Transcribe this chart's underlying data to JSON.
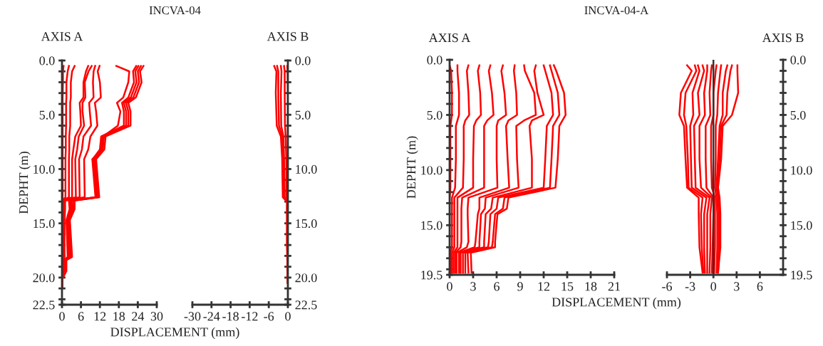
{
  "chart_data": [
    {
      "type": "line",
      "title": "INCVA-04",
      "subtitle": "AXIS A",
      "xlabel": "DISPLACEMENT (mm)",
      "ylabel": "DEPHT (m)",
      "xlim": [
        0,
        30
      ],
      "xticks": [
        0,
        6,
        12,
        18,
        24,
        30
      ],
      "ylim": [
        22.5,
        0
      ],
      "yticks": [
        {
          "value": 0,
          "label": "0.0"
        },
        {
          "value": 1,
          "label": null
        },
        {
          "value": 2,
          "label": null
        },
        {
          "value": 3,
          "label": null
        },
        {
          "value": 4,
          "label": null
        },
        {
          "value": 5,
          "label": "5.0"
        },
        {
          "value": 6,
          "label": null
        },
        {
          "value": 7,
          "label": null
        },
        {
          "value": 8,
          "label": null
        },
        {
          "value": 9,
          "label": null
        },
        {
          "value": 10,
          "label": "10.0"
        },
        {
          "value": 11,
          "label": null
        },
        {
          "value": 12,
          "label": null
        },
        {
          "value": 13,
          "label": null
        },
        {
          "value": 14,
          "label": null
        },
        {
          "value": 15,
          "label": "15.0"
        },
        {
          "value": 16,
          "label": null
        },
        {
          "value": 17,
          "label": null
        },
        {
          "value": 18,
          "label": null
        },
        {
          "value": 19,
          "label": null
        },
        {
          "value": 20,
          "label": "20.0"
        },
        {
          "value": 21,
          "label": null
        },
        {
          "value": 22,
          "label": null
        },
        {
          "value": 22.5,
          "label": "22.5"
        }
      ],
      "series": [
        {
          "color": "#ff0000",
          "x": [
            25.8,
            24.7,
            25.2,
            23.4,
            21,
            21.7,
            21.7,
            13.8,
            13.4,
            10.8,
            11.8,
            4,
            4,
            2.5,
            3.2,
            1.4,
            1.4,
            0,
            0
          ],
          "values": [
            0.5,
            1,
            2,
            3.4,
            3.9,
            4.7,
            6,
            7,
            8.2,
            9.1,
            12.6,
            12.9,
            13.7,
            14.7,
            18.1,
            18.4,
            19.4,
            20.2,
            20.9
          ]
        },
        {
          "color": "#ff0000",
          "x": [
            25,
            24,
            24.4,
            22.6,
            20.3,
            21,
            21,
            13.3,
            12.9,
            10.4,
            11.5,
            3.5,
            3.6,
            2.2,
            2.8,
            1.1,
            1.1,
            0,
            0
          ],
          "values": [
            0.5,
            1,
            2,
            3.4,
            3.9,
            4.7,
            6,
            7,
            8.2,
            9.1,
            12.6,
            12.9,
            13.7,
            14.7,
            18.1,
            18.4,
            19.4,
            20.2,
            20.9
          ]
        },
        {
          "color": "#ff0000",
          "x": [
            24.2,
            23.2,
            23.6,
            21.8,
            19.6,
            20.3,
            20.3,
            12.8,
            12.4,
            10,
            11.2,
            3,
            3.2,
            1.9,
            2.4,
            0.8,
            0.9,
            0,
            0
          ],
          "values": [
            0.5,
            1,
            2,
            3.4,
            3.9,
            4.7,
            6,
            7,
            8.2,
            9.1,
            12.6,
            12.9,
            13.7,
            14.7,
            18.1,
            18.4,
            19.4,
            20.2,
            20.9
          ]
        },
        {
          "color": "#ff0000",
          "x": [
            23.5,
            22.5,
            22.8,
            21,
            19,
            19.6,
            19.6,
            12.4,
            12,
            9.7,
            10.9,
            2.6,
            2.8,
            1.6,
            2,
            0.6,
            0.7,
            0,
            0
          ],
          "values": [
            0.5,
            1,
            2,
            3.4,
            3.9,
            4.7,
            6,
            7,
            8.2,
            9.1,
            12.6,
            12.9,
            13.7,
            14.7,
            18.1,
            18.4,
            19.4,
            20.2,
            20.9
          ]
        },
        {
          "color": "#ff0000",
          "x": [
            17.2,
            21.3,
            21,
            19.4,
            17.4,
            18.5,
            17.7,
            13,
            12.6,
            9.6,
            10.6,
            2.2,
            2.4,
            1.4,
            1.8,
            0.5,
            0.6,
            0,
            0
          ],
          "values": [
            0.5,
            1,
            2,
            3.4,
            3.9,
            4.7,
            6,
            7,
            8.2,
            9.1,
            12.6,
            12.9,
            13.7,
            14.7,
            18.1,
            18.4,
            19.4,
            20.2,
            20.9
          ]
        },
        {
          "color": "#ff0000",
          "x": [
            11.9,
            11.3,
            12,
            12.3,
            10.4,
            10.8,
            11.2,
            9,
            8.3,
            7,
            7.2,
            1,
            1,
            0.8,
            0.8,
            0.5,
            0.5,
            0,
            0
          ],
          "values": [
            0.5,
            1,
            2,
            3.4,
            3.9,
            4.7,
            6,
            7,
            8.2,
            9.1,
            12.6,
            12.9,
            13.7,
            14.7,
            18.1,
            18.4,
            19.4,
            20.2,
            20.9
          ]
        },
        {
          "color": "#ff0000",
          "x": [
            10.5,
            10,
            9.8,
            10,
            8.6,
            8.8,
            9.2,
            6.8,
            6.3,
            5.4,
            5.6,
            0.8,
            0.8,
            0.6,
            0.6,
            0.4,
            0.4,
            0,
            0
          ],
          "values": [
            0.5,
            1,
            2,
            3.4,
            3.9,
            4.7,
            6,
            7,
            8.2,
            9.1,
            12.6,
            12.9,
            13.7,
            14.7,
            18.1,
            18.4,
            19.4,
            20.2,
            20.9
          ]
        },
        {
          "color": "#ff0000",
          "x": [
            9.4,
            8.4,
            7.2,
            7.4,
            6.5,
            6.5,
            7,
            5.3,
            4.8,
            4.2,
            4.4,
            0.6,
            0.6,
            0.5,
            0.5,
            0.3,
            0.3,
            0,
            0
          ],
          "values": [
            0.5,
            1,
            2,
            3.4,
            3.9,
            4.7,
            6,
            7,
            8.2,
            9.1,
            12.6,
            12.9,
            13.7,
            14.7,
            18.1,
            18.4,
            19.4,
            20.2,
            20.9
          ]
        },
        {
          "color": "#ff0000",
          "x": [
            8.3,
            7.6,
            6.8,
            6.8,
            5.6,
            5.8,
            6,
            4.2,
            3.6,
            3.2,
            3.2,
            0.4,
            0.5,
            0.4,
            0.4,
            0.2,
            0.2,
            0,
            0
          ],
          "values": [
            0.5,
            1,
            2,
            3.4,
            3.9,
            4.7,
            6,
            7,
            8.2,
            9.1,
            12.6,
            12.9,
            13.7,
            14.7,
            18.1,
            18.4,
            19.4,
            20.2,
            20.9
          ]
        },
        {
          "color": "#ff0000",
          "x": [
            4,
            3.2,
            2.8,
            2.8,
            2.6,
            2.6,
            2.6,
            2.3,
            2.3,
            2.2,
            2.2,
            0.3,
            0.3,
            0.3,
            0.3,
            0.2,
            0.2,
            0,
            0
          ],
          "values": [
            0.5,
            1,
            2,
            3.4,
            3.9,
            4.7,
            6,
            7,
            8.2,
            9.1,
            12.6,
            12.9,
            13.7,
            14.7,
            18.1,
            18.4,
            19.4,
            20.2,
            20.9
          ]
        },
        {
          "color": "#ff0000",
          "x": [
            2.2,
            1.8,
            1.4,
            1.4,
            1.3,
            1.3,
            1.3,
            1.2,
            1.2,
            1.1,
            1.1,
            0.2,
            0.2,
            0.2,
            0.2,
            0.1,
            0.1,
            0,
            0
          ],
          "values": [
            0.5,
            1,
            2,
            3.4,
            3.9,
            4.7,
            6,
            7,
            8.2,
            9.1,
            12.6,
            12.9,
            13.7,
            14.7,
            18.1,
            18.4,
            19.4,
            20.2,
            20.9
          ]
        },
        {
          "color": "#ff0000",
          "x": [
            0.5,
            0.3,
            0.3,
            0.2,
            0.2,
            0.2,
            0.2,
            0.2,
            0.2,
            0.2,
            0.2,
            0.1,
            0.1,
            0.1,
            0.1,
            0,
            0,
            0,
            0
          ],
          "values": [
            0.5,
            1,
            2,
            3.4,
            3.9,
            4.7,
            6,
            7,
            8.2,
            9.1,
            12.6,
            12.9,
            13.7,
            14.7,
            18.1,
            18.4,
            19.4,
            20.2,
            20.9
          ]
        }
      ]
    },
    {
      "type": "line",
      "subtitle": "AXIS B",
      "xlim": [
        -30,
        0
      ],
      "xticks": [
        -30,
        -24,
        -18,
        -12,
        -6,
        0
      ],
      "ylim": [
        22.5,
        0
      ],
      "yticks": [
        {
          "value": 0,
          "label": "0.0"
        },
        {
          "value": 1,
          "label": null
        },
        {
          "value": 2,
          "label": null
        },
        {
          "value": 3,
          "label": null
        },
        {
          "value": 4,
          "label": null
        },
        {
          "value": 5,
          "label": "5.0"
        },
        {
          "value": 6,
          "label": null
        },
        {
          "value": 7,
          "label": null
        },
        {
          "value": 8,
          "label": null
        },
        {
          "value": 9,
          "label": null
        },
        {
          "value": 10,
          "label": "10.0"
        },
        {
          "value": 11,
          "label": null
        },
        {
          "value": 12,
          "label": null
        },
        {
          "value": 13,
          "label": null
        },
        {
          "value": 14,
          "label": null
        },
        {
          "value": 15,
          "label": "15.0"
        },
        {
          "value": 16,
          "label": null
        },
        {
          "value": 17,
          "label": null
        },
        {
          "value": 18,
          "label": null
        },
        {
          "value": 19,
          "label": null
        },
        {
          "value": 20,
          "label": "20.0"
        },
        {
          "value": 21,
          "label": null
        },
        {
          "value": 22,
          "label": null
        },
        {
          "value": 22.5,
          "label": "22.5"
        }
      ],
      "series": [
        {
          "color": "#ff0000",
          "x": [
            -4.3,
            -3.6,
            -3.8,
            -3.5,
            -2.2,
            -1.8,
            -1.6,
            -0.3,
            -0.3,
            0
          ],
          "values": [
            0.5,
            1,
            3,
            6,
            7,
            9,
            12.6,
            13,
            17,
            20.5
          ]
        },
        {
          "color": "#ff0000",
          "x": [
            -3.4,
            -3,
            -3,
            -2.8,
            -1.8,
            -1.5,
            -1.3,
            -0.2,
            -0.2,
            0
          ],
          "values": [
            0.5,
            1,
            3,
            6,
            7,
            9,
            12.6,
            13,
            17,
            20.5
          ]
        },
        {
          "color": "#ff0000",
          "x": [
            -2.2,
            -2,
            -2.2,
            -2.1,
            -1.4,
            -1.2,
            -1,
            -0.2,
            -0.1,
            0
          ],
          "values": [
            0.5,
            1,
            3,
            6,
            7,
            9,
            12.6,
            13,
            17,
            20.5
          ]
        },
        {
          "color": "#ff0000",
          "x": [
            -1.2,
            -1,
            -1,
            -0.9,
            -0.7,
            -0.5,
            -0.4,
            -0.1,
            -0.1,
            0
          ],
          "values": [
            0.5,
            1,
            3,
            6,
            7,
            9,
            12.6,
            13,
            17,
            20.5
          ]
        },
        {
          "color": "#ff0000",
          "x": [
            -0.2,
            -0.1,
            0,
            0,
            0,
            0,
            0,
            0,
            0,
            0
          ],
          "values": [
            0.5,
            1,
            3,
            6,
            7,
            9,
            12.6,
            13,
            17,
            20.5
          ]
        }
      ]
    },
    {
      "type": "line",
      "title": "INCVA-04-A",
      "subtitle": "AXIS A",
      "xlabel": "DISPLACEMENT (mm)",
      "ylabel": "DEPHT (m)",
      "xlim": [
        0,
        21
      ],
      "xticks": [
        0,
        3,
        6,
        9,
        12,
        15,
        18,
        21
      ],
      "ylim": [
        19.5,
        0
      ],
      "yticks": [
        {
          "value": 0,
          "label": "0.0"
        },
        {
          "value": 1,
          "label": null
        },
        {
          "value": 2,
          "label": null
        },
        {
          "value": 3,
          "label": null
        },
        {
          "value": 4,
          "label": null
        },
        {
          "value": 5,
          "label": "5.0"
        },
        {
          "value": 6,
          "label": null
        },
        {
          "value": 7,
          "label": null
        },
        {
          "value": 8,
          "label": null
        },
        {
          "value": 9,
          "label": null
        },
        {
          "value": 10,
          "label": "10.0"
        },
        {
          "value": 11,
          "label": null
        },
        {
          "value": 12,
          "label": null
        },
        {
          "value": 13,
          "label": null
        },
        {
          "value": 14,
          "label": null
        },
        {
          "value": 15,
          "label": "15.0"
        },
        {
          "value": 16,
          "label": null
        },
        {
          "value": 17,
          "label": null
        },
        {
          "value": 18,
          "label": null
        },
        {
          "value": 19,
          "label": null
        },
        {
          "value": 19.5,
          "label": "19.5"
        }
      ],
      "series": [
        {
          "color": "#ff0000",
          "x": [
            13.3,
            13.6,
            14.6,
            14.8,
            14.4,
            14,
            13.8,
            13.5,
            7.5,
            7.3,
            6.1,
            5.8,
            5.8,
            2.7,
            2.8
          ],
          "values": [
            0.5,
            1,
            3,
            5,
            5.5,
            6,
            9,
            11.6,
            12.5,
            13.5,
            14,
            16.5,
            17,
            17.5,
            19.3
          ]
        },
        {
          "color": "#ff0000",
          "x": [
            12.8,
            13,
            13.8,
            14,
            13.6,
            13.2,
            13,
            12.8,
            7,
            6.8,
            5.8,
            5.5,
            5.4,
            2.3,
            2.4
          ],
          "values": [
            0.5,
            1,
            3,
            5,
            5.5,
            6,
            9,
            11.6,
            12.5,
            13.5,
            14,
            16.5,
            17,
            17.5,
            19.3
          ]
        },
        {
          "color": "#ff0000",
          "x": [
            12,
            12.2,
            13,
            13.2,
            12.8,
            12.4,
            12.2,
            12,
            6.2,
            6,
            5.2,
            5,
            4.9,
            2,
            2
          ],
          "values": [
            0.5,
            1,
            3,
            5,
            5.5,
            6,
            9,
            11.6,
            12.5,
            13.5,
            14,
            16.5,
            17,
            17.5,
            19.3
          ]
        },
        {
          "color": "#ff0000",
          "x": [
            11,
            10.8,
            11.2,
            12,
            10.5,
            10.2,
            10.5,
            10.5,
            5.5,
            5.3,
            4.6,
            4.4,
            4.4,
            1.7,
            1.7
          ],
          "values": [
            0.5,
            1,
            3,
            5,
            5.5,
            6,
            9,
            11.6,
            12.5,
            13.5,
            14,
            16.5,
            17,
            17.5,
            19.3
          ]
        },
        {
          "color": "#ff0000",
          "x": [
            9.5,
            9.6,
            10.8,
            11,
            9.5,
            8.5,
            8.6,
            8.8,
            4.6,
            4.5,
            4,
            3.8,
            3.8,
            1.4,
            1.4
          ],
          "values": [
            0.5,
            1,
            3,
            5,
            5.5,
            6,
            9,
            11.6,
            12.5,
            13.5,
            14,
            16.5,
            17,
            17.5,
            19.3
          ]
        },
        {
          "color": "#ff0000",
          "x": [
            8.3,
            8.2,
            8.5,
            8.6,
            7.5,
            7.2,
            7.4,
            7.6,
            3.8,
            3.8,
            3.6,
            3.3,
            3.2,
            1.2,
            1.2
          ],
          "values": [
            0.5,
            1,
            3,
            5,
            5.5,
            6,
            9,
            11.6,
            12.5,
            13.5,
            14,
            16.5,
            17,
            17.5,
            19.3
          ]
        },
        {
          "color": "#ff0000",
          "x": [
            6.8,
            6.6,
            7,
            7.2,
            6.2,
            6,
            6,
            6.1,
            2.4,
            2.3,
            2.3,
            2.4,
            2.2,
            0.9,
            0.9
          ],
          "values": [
            0.5,
            1,
            3,
            5,
            5.5,
            6,
            9,
            11.6,
            12.5,
            13.5,
            14,
            16.5,
            17,
            17.5,
            19.3
          ]
        },
        {
          "color": "#ff0000",
          "x": [
            5.2,
            5,
            5.4,
            5.6,
            4.8,
            4.4,
            4.4,
            4.4,
            1.6,
            1.5,
            1.5,
            1.5,
            1.4,
            0.7,
            0.7
          ],
          "values": [
            0.5,
            1,
            3,
            5,
            5.5,
            6,
            9,
            11.6,
            12.5,
            13.5,
            14,
            16.5,
            17,
            17.5,
            19.3
          ]
        },
        {
          "color": "#ff0000",
          "x": [
            3.8,
            3.6,
            3.9,
            4,
            3.4,
            3.1,
            3,
            3,
            1,
            1,
            1,
            1,
            1,
            0.5,
            0.5
          ],
          "values": [
            0.5,
            1,
            3,
            5,
            5.5,
            6,
            9,
            11.6,
            12.5,
            13.5,
            14,
            16.5,
            17,
            17.5,
            19.3
          ]
        },
        {
          "color": "#ff0000",
          "x": [
            2.4,
            2.2,
            2.4,
            2.5,
            2,
            1.8,
            1.8,
            1.7,
            0.6,
            0.6,
            0.6,
            0.6,
            0.6,
            0.3,
            0.3
          ],
          "values": [
            0.5,
            1,
            3,
            5,
            5.5,
            6,
            9,
            11.6,
            12.5,
            13.5,
            14,
            16.5,
            17,
            17.5,
            19.3
          ]
        },
        {
          "color": "#ff0000",
          "x": [
            1,
            1,
            1.2,
            1.2,
            1,
            0.8,
            0.8,
            0.7,
            0.3,
            0.3,
            0.3,
            0.3,
            0.3,
            0.1,
            0.1
          ],
          "values": [
            0.5,
            1,
            3,
            5,
            5.5,
            6,
            9,
            11.6,
            12.5,
            13.5,
            14,
            16.5,
            17,
            17.5,
            19.3
          ]
        },
        {
          "color": "#ff0000",
          "x": [
            0,
            0.2,
            0.3,
            0.3,
            0.2,
            0.1,
            0.1,
            0.1,
            0,
            0,
            0,
            0,
            0,
            0,
            0
          ],
          "values": [
            0.5,
            1,
            3,
            5,
            5.5,
            6,
            9,
            11.6,
            12.5,
            13.5,
            14,
            16.5,
            17,
            17.5,
            19.3
          ]
        }
      ]
    },
    {
      "type": "line",
      "subtitle": "AXIS B",
      "xlim": [
        -6,
        9
      ],
      "xticks": [
        -6,
        -3,
        0,
        3,
        6
      ],
      "ylim": [
        19.5,
        0
      ],
      "yticks": [
        {
          "value": 0,
          "label": "0.0"
        },
        {
          "value": 1,
          "label": null
        },
        {
          "value": 2,
          "label": null
        },
        {
          "value": 3,
          "label": null
        },
        {
          "value": 4,
          "label": null
        },
        {
          "value": 5,
          "label": "5.0"
        },
        {
          "value": 6,
          "label": null
        },
        {
          "value": 7,
          "label": null
        },
        {
          "value": 8,
          "label": null
        },
        {
          "value": 9,
          "label": null
        },
        {
          "value": 10,
          "label": "10.0"
        },
        {
          "value": 11,
          "label": null
        },
        {
          "value": 12,
          "label": null
        },
        {
          "value": 13,
          "label": null
        },
        {
          "value": 14,
          "label": null
        },
        {
          "value": 15,
          "label": "15.0"
        },
        {
          "value": 16,
          "label": null
        },
        {
          "value": 17,
          "label": null
        },
        {
          "value": 18,
          "label": null
        },
        {
          "value": 19,
          "label": null
        },
        {
          "value": 19.5,
          "label": "19.5"
        }
      ],
      "ref_lines": [
        {
          "axis": "x",
          "value": 0,
          "color": "#333333"
        }
      ],
      "series": [
        {
          "color": "#ff0000",
          "x": [
            -3.4,
            -2.8,
            -4.2,
            -4.4,
            -3.8,
            -3.6,
            -3.4,
            -1.9,
            -1.9,
            -1.8,
            -1.4
          ],
          "values": [
            0.5,
            1,
            3,
            5,
            6,
            9,
            11.6,
            12.5,
            14,
            17,
            19.3
          ]
        },
        {
          "color": "#ff0000",
          "x": [
            -2.4,
            -2.2,
            -3.6,
            -3.8,
            -3.5,
            -3.3,
            -3.2,
            -1.4,
            -1.6,
            -1.5,
            -1.3
          ],
          "values": [
            0.5,
            1,
            3,
            5,
            6,
            9,
            11.6,
            12.5,
            14,
            17,
            19.3
          ]
        },
        {
          "color": "#ff0000",
          "x": [
            -2,
            -1.8,
            -2.7,
            -2.6,
            -3,
            -2.9,
            -2.8,
            -0.9,
            -1.2,
            -1.2,
            -1.1
          ],
          "values": [
            0.5,
            1,
            3,
            5,
            6,
            9,
            11.6,
            12.5,
            14,
            17,
            19.3
          ]
        },
        {
          "color": "#ff0000",
          "x": [
            -1.4,
            -1.2,
            -2,
            -1.8,
            -2.5,
            -2.4,
            -2.3,
            -0.5,
            -0.8,
            -0.8,
            -0.8
          ],
          "values": [
            0.5,
            1,
            3,
            5,
            6,
            9,
            11.6,
            12.5,
            14,
            17,
            19.3
          ]
        },
        {
          "color": "#ff0000",
          "x": [
            -0.8,
            -0.8,
            -1.2,
            -1.1,
            -1.8,
            -1.8,
            -1.6,
            -0.2,
            -0.4,
            -0.4,
            -0.5
          ],
          "values": [
            0.5,
            1,
            3,
            5,
            6,
            9,
            11.6,
            12.5,
            14,
            17,
            19.3
          ]
        },
        {
          "color": "#ff0000",
          "x": [
            -0.2,
            -0.3,
            -0.5,
            -0.4,
            -1,
            -1,
            -0.9,
            0,
            0,
            -0.1,
            -0.2
          ],
          "values": [
            0.5,
            1,
            3,
            5,
            6,
            9,
            11.6,
            12.5,
            14,
            17,
            19.3
          ]
        },
        {
          "color": "#ff0000",
          "x": [
            0.4,
            0.3,
            0,
            0,
            -0.3,
            -0.3,
            -0.2,
            0.2,
            0.2,
            0.2,
            0.1
          ],
          "values": [
            0.5,
            1,
            3,
            5,
            6,
            9,
            11.6,
            12.5,
            14,
            17,
            19.3
          ]
        },
        {
          "color": "#ff0000",
          "x": [
            1,
            0.9,
            0.6,
            0.5,
            0.3,
            0.3,
            0.2,
            0.4,
            0.5,
            0.5,
            0.4
          ],
          "values": [
            0.5,
            1,
            3,
            5,
            6,
            9,
            11.6,
            12.5,
            14,
            17,
            19.3
          ]
        },
        {
          "color": "#ff0000",
          "x": [
            1.8,
            1.6,
            1.2,
            1.2,
            0.8,
            0.6,
            0.4,
            0.6,
            0.7,
            0.7,
            0.5
          ],
          "values": [
            0.5,
            1,
            3,
            5,
            6,
            9,
            11.6,
            12.5,
            14,
            17,
            19.3
          ]
        },
        {
          "color": "#ff0000",
          "x": [
            2.4,
            2.2,
            1.8,
            1.7,
            1,
            0.8,
            0.5,
            0.7,
            0.8,
            0.8,
            0.6
          ],
          "values": [
            0.5,
            1,
            3,
            5,
            6,
            9,
            11.6,
            12.5,
            14,
            17,
            19.3
          ]
        },
        {
          "color": "#ff0000",
          "x": [
            3.1,
            3.1,
            3.2,
            2.4,
            1.2,
            1,
            0.6,
            0.8,
            0.9,
            0.9,
            0.6
          ],
          "values": [
            0.5,
            1,
            3,
            5,
            6,
            9,
            11.6,
            12.5,
            14,
            17,
            19.3
          ]
        }
      ]
    }
  ]
}
